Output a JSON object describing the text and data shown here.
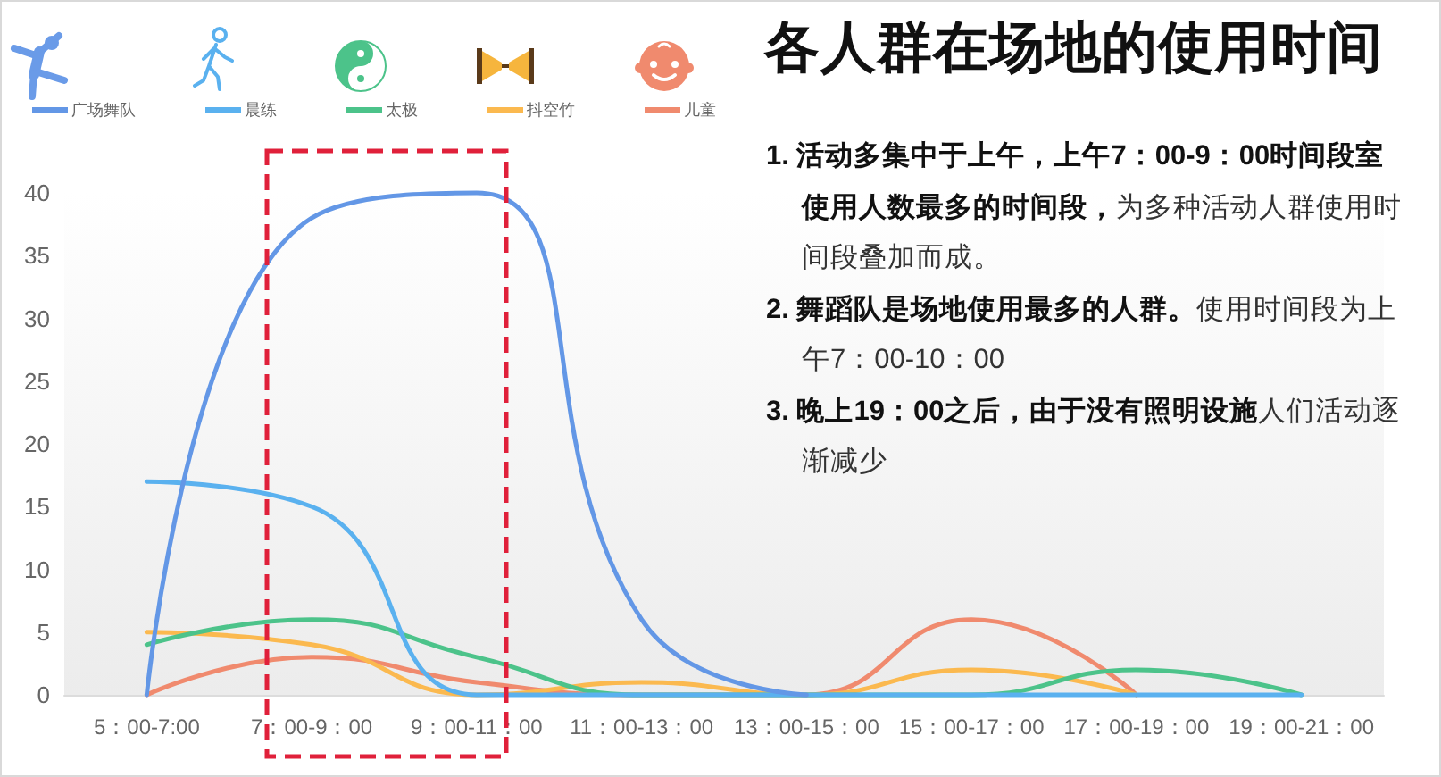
{
  "chart_data": {
    "type": "line",
    "title": "各人群在场地的使用时间",
    "annotations": [
      "1. 活动多集中于上午，上午7：00-9：00时间段室使用人数最多的时间段，",
      "为多种活动人群使用时间段叠加而成。",
      "2. 舞蹈队是场地使用最多的人群。",
      "使用时间段为上午7：00-10：00",
      "3. 晚上19：00之后，由于没有照明设施",
      "人们活动逐渐减少"
    ],
    "categories": [
      "5：00-7:00",
      "7：00-9：00",
      "9：00-11：00",
      "11：00-13：00",
      "13：00-15：00",
      "15：00-17：00",
      "17：00-19：00",
      "19：00-21：00"
    ],
    "series": [
      {
        "name": "广场舞队",
        "color": "#6397e6",
        "values": [
          0,
          38,
          40,
          6,
          0,
          null,
          null,
          null
        ]
      },
      {
        "name": "晨练",
        "color": "#5ab1ef",
        "values": [
          17,
          15,
          0,
          0,
          0,
          0,
          0,
          0
        ]
      },
      {
        "name": "太极",
        "color": "#4cc38a",
        "values": [
          4,
          6,
          3,
          0,
          0,
          0,
          2,
          0
        ]
      },
      {
        "name": "抖空竹",
        "color": "#fbb94f",
        "values": [
          5,
          4,
          0,
          1,
          0,
          2,
          0,
          null
        ]
      },
      {
        "name": "儿童",
        "color": "#f08a6e",
        "values": [
          0,
          3,
          1,
          0,
          0,
          6,
          0,
          null
        ]
      }
    ],
    "ylim": [
      0,
      40
    ],
    "yticks": [
      0,
      5,
      10,
      15,
      20,
      25,
      30,
      35,
      40
    ],
    "legend": "top left",
    "marker": "none"
  }
}
